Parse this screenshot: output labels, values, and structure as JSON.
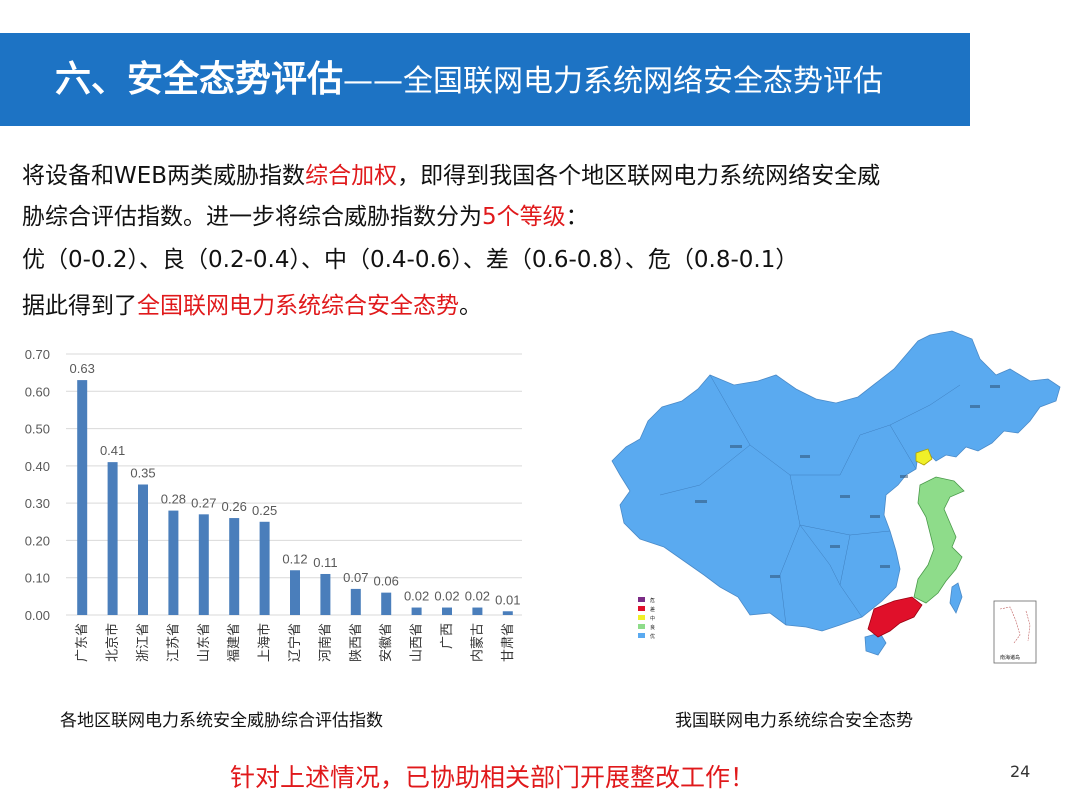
{
  "header": {
    "title_main": "六、安全态势评估",
    "title_sub": "——全国联网电力系统网络安全态势评估"
  },
  "intro": {
    "line1_a": "将设备和WEB两类威胁指数",
    "line1_b": "综合加权",
    "line1_c": "，即得到我国各个地区联网电力系统网络安全威",
    "line2_a": "胁综合评估指数。进一步将综合威胁指数分为",
    "line2_b": "5个等级",
    "line2_c": "：",
    "line3": "优（0-0.2）、良（0.2-0.4）、中（0.4-0.6）、差（0.6-0.8）、危（0.8-0.1）",
    "line4_a": "据此得到了",
    "line4_b": "全国联网电力系统综合安全态势",
    "line4_c": "。"
  },
  "chart_data": {
    "type": "bar",
    "title": "",
    "xlabel": "",
    "ylabel": "",
    "categories": [
      "广东省",
      "北京市",
      "浙江省",
      "江苏省",
      "山东省",
      "福建省",
      "上海市",
      "辽宁省",
      "河南省",
      "陕西省",
      "安徽省",
      "山西省",
      "广西",
      "内蒙古",
      "甘肃省"
    ],
    "values": [
      0.63,
      0.41,
      0.35,
      0.28,
      0.27,
      0.26,
      0.25,
      0.12,
      0.11,
      0.07,
      0.06,
      0.02,
      0.02,
      0.02,
      0.01
    ],
    "data_labels": [
      "0.63",
      "0.41",
      "0.35",
      "0.28",
      "0.27",
      "0.26",
      "0.25",
      "0.12",
      "0.11",
      "0.07",
      "0.06",
      "0.02",
      "0.02",
      "0.02",
      "0.01"
    ],
    "yticks": [
      "0.00",
      "0.10",
      "0.20",
      "0.30",
      "0.40",
      "0.50",
      "0.60",
      "0.70"
    ],
    "ylim": [
      0,
      0.7
    ],
    "grid": true,
    "bar_color": "#4a7ebb",
    "grid_color": "#d9d9d9"
  },
  "captions": {
    "chart": "各地区联网电力系统安全威胁综合评估指数",
    "map": "我国联网电力系统综合安全态势"
  },
  "map": {
    "base_color": "#5aaaf0",
    "legend": [
      {
        "label": "危",
        "color": "#7b2c86"
      },
      {
        "label": "差",
        "color": "#e0102a"
      },
      {
        "label": "中",
        "color": "#f0f028"
      },
      {
        "label": "良",
        "color": "#8edc8a"
      },
      {
        "label": "优",
        "color": "#5aaaf0"
      }
    ],
    "inset_label": "南海诸岛"
  },
  "footer": {
    "note": "针对上述情况，已协助相关部门开展整改工作！",
    "page": "24"
  }
}
